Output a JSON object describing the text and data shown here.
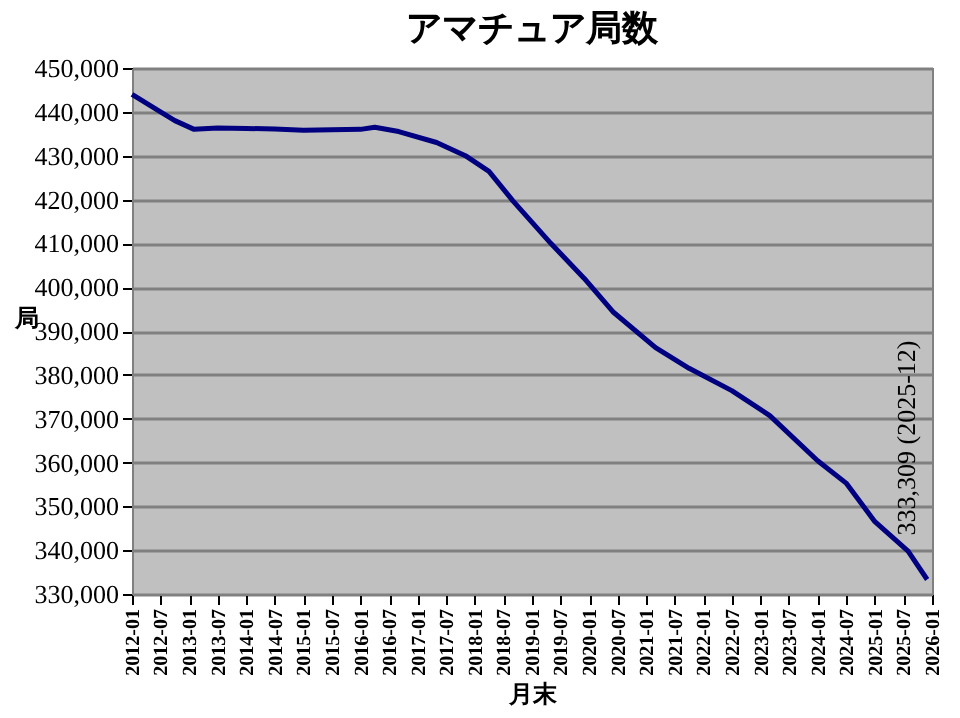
{
  "chart_data": {
    "type": "line",
    "title": "アマチュア局数",
    "xlabel": "月末",
    "ylabel": "局",
    "x": [
      "2012-01",
      "2012-04",
      "2012-07",
      "2012-10",
      "2013-02",
      "2013-07",
      "2014-01",
      "2014-07",
      "2015-01",
      "2015-07",
      "2016-01",
      "2016-04",
      "2016-09",
      "2017-05",
      "2017-11",
      "2018-04",
      "2018-09",
      "2019-05",
      "2019-12",
      "2020-06",
      "2021-03",
      "2021-10",
      "2022-07",
      "2023-03",
      "2024-01",
      "2024-07",
      "2025-01",
      "2025-08",
      "2025-12"
    ],
    "series": [
      {
        "color": "#000080",
        "values": [
          444000,
          442000,
          440000,
          438000,
          436000,
          436300,
          436200,
          436100,
          435800,
          435900,
          436000,
          436500,
          435500,
          433000,
          430000,
          426400,
          419700,
          410000,
          402000,
          394400,
          386200,
          381500,
          376400,
          370700,
          360400,
          355300,
          346500,
          339800,
          333309
        ]
      }
    ],
    "ylim": [
      330000,
      450000
    ],
    "yticks": [
      {
        "value": 330000,
        "label": "330,000"
      },
      {
        "value": 340000,
        "label": "340,000"
      },
      {
        "value": 350000,
        "label": "350,000"
      },
      {
        "value": 360000,
        "label": "360,000"
      },
      {
        "value": 370000,
        "label": "370,000"
      },
      {
        "value": 380000,
        "label": "380,000"
      },
      {
        "value": 390000,
        "label": "390,000"
      },
      {
        "value": 400000,
        "label": "400,000"
      },
      {
        "value": 410000,
        "label": "410,000"
      },
      {
        "value": 420000,
        "label": "420,000"
      },
      {
        "value": 430000,
        "label": "430,000"
      },
      {
        "value": 440000,
        "label": "440,000"
      },
      {
        "value": 450000,
        "label": "450,000"
      }
    ],
    "xlim": [
      "2012-01",
      "2026-01"
    ],
    "xticks": [
      "2012-01",
      "2012-07",
      "2013-01",
      "2013-07",
      "2014-01",
      "2014-07",
      "2015-01",
      "2015-07",
      "2016-01",
      "2016-07",
      "2017-01",
      "2017-07",
      "2018-01",
      "2018-07",
      "2019-01",
      "2019-07",
      "2020-01",
      "2020-07",
      "2021-01",
      "2021-07",
      "2022-01",
      "2022-07",
      "2023-01",
      "2023-07",
      "2024-01",
      "2024-07",
      "2025-01",
      "2025-07",
      "2026-01"
    ],
    "annotations": [
      {
        "text": "333,309 (2025-12)",
        "x": "2025-12",
        "y": 333309
      }
    ],
    "grid": "y",
    "marker": "none",
    "line_style": "solid"
  }
}
